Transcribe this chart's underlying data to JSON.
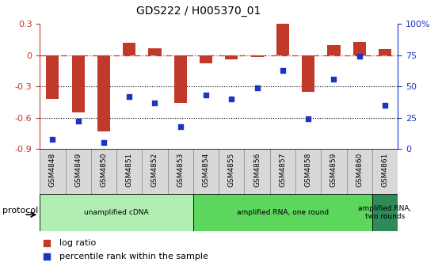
{
  "title": "GDS222 / H005370_01",
  "samples": [
    "GSM4848",
    "GSM4849",
    "GSM4850",
    "GSM4851",
    "GSM4852",
    "GSM4853",
    "GSM4854",
    "GSM4855",
    "GSM4856",
    "GSM4857",
    "GSM4858",
    "GSM4859",
    "GSM4860",
    "GSM4861"
  ],
  "log_ratio": [
    -0.42,
    -0.55,
    -0.73,
    0.12,
    0.07,
    -0.46,
    -0.08,
    -0.04,
    -0.02,
    0.3,
    -0.35,
    0.1,
    0.13,
    0.06
  ],
  "percentile": [
    8,
    22,
    5,
    42,
    37,
    18,
    43,
    40,
    49,
    63,
    24,
    56,
    74,
    35
  ],
  "ylim_left": [
    -0.9,
    0.3
  ],
  "ylim_right": [
    0,
    100
  ],
  "yticks_left": [
    -0.9,
    -0.6,
    -0.3,
    0.0,
    0.3
  ],
  "ytick_labels_left": [
    "-0.9",
    "-0.6",
    "-0.3",
    "0",
    "0.3"
  ],
  "yticks_right": [
    0,
    25,
    50,
    75,
    100
  ],
  "ytick_labels_right": [
    "0",
    "25",
    "50",
    "75",
    "100%"
  ],
  "bar_color": "#C0392B",
  "dot_color": "#1A35C5",
  "hline_y": 0.0,
  "dotted_lines": [
    -0.3,
    -0.6
  ],
  "protocol_groups": [
    {
      "label": "unamplified cDNA",
      "start": 0,
      "end": 5,
      "color": "#B2EEB2"
    },
    {
      "label": "amplified RNA, one round",
      "start": 6,
      "end": 12,
      "color": "#5CD65C"
    },
    {
      "label": "amplified RNA,\ntwo rounds",
      "start": 13,
      "end": 13,
      "color": "#2E8B57"
    }
  ],
  "legend_bar_label": "log ratio",
  "legend_dot_label": "percentile rank within the sample",
  "protocol_label": "protocol",
  "bar_width": 0.5
}
